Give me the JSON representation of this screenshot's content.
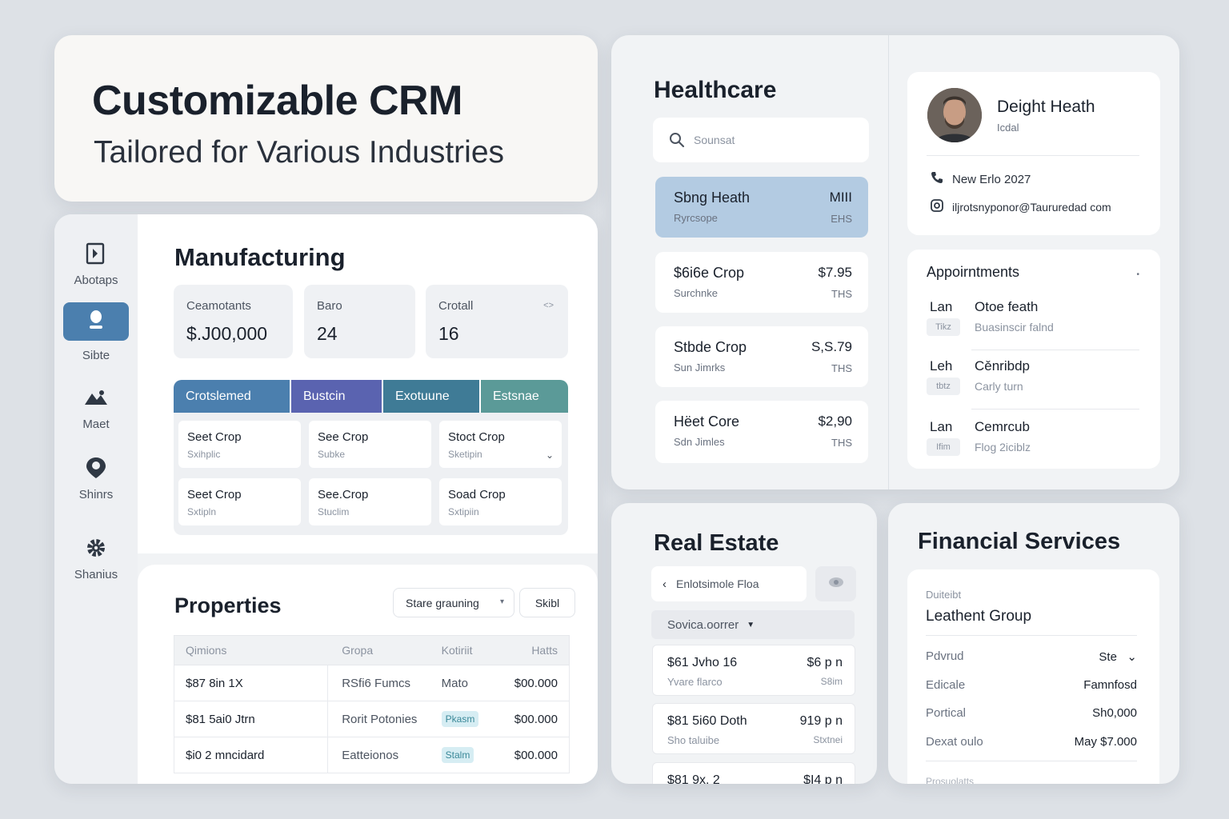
{
  "hero": {
    "title": "Customizable CRM",
    "subtitle": "Tailored for Various Industries"
  },
  "manufacturing": {
    "title": "Manufacturing",
    "nav": [
      {
        "label": "Abotaps",
        "icon": "book-icon"
      },
      {
        "label": "Sibte",
        "icon": "user-icon"
      },
      {
        "label": "Maet",
        "icon": "mountain-image-icon"
      },
      {
        "label": "Shinrs",
        "icon": "location-pin-icon"
      },
      {
        "label": "Shanius",
        "icon": "gear-icon"
      }
    ],
    "stats": [
      {
        "label": "Ceamotants",
        "value": "$.J00,000"
      },
      {
        "label": "Baro",
        "value": "24"
      },
      {
        "label": "Crotall",
        "value": "16",
        "mini": "<>"
      }
    ],
    "grid_headers": [
      "Crotslemed",
      "Bustcin",
      "Exotuune",
      "Estsnae"
    ],
    "grid_colors": [
      "#4b7fae",
      "#5a63b0",
      "#3f7b96",
      "#5b9a98"
    ],
    "grid_cells": [
      {
        "title": "Seet Crop",
        "sub": "Sxihplic"
      },
      {
        "title": "See Crop",
        "sub": "Subke"
      },
      {
        "title": "Stoct Crop",
        "sub": "Sketipin",
        "chevron": "⌄"
      },
      {
        "title": "Seet Crop",
        "sub": "Sxtipln"
      },
      {
        "title": "See.Crop",
        "sub": "Stuclim"
      },
      {
        "title": "Soad Crop",
        "sub": "Sxtipiin"
      }
    ]
  },
  "properties": {
    "title": "Properties",
    "select_label": "Stare grauning",
    "button_label": "Skibl",
    "headers": [
      "Qimions",
      "Gropa",
      "Kotiriit",
      "Hatts"
    ],
    "rows": [
      {
        "c1": "$87 8in 1X",
        "c2": "RSfi6 Fumcs",
        "c3": "Mato",
        "c4": "$00.000",
        "pill": false
      },
      {
        "c1": "$81 5ai0 Jtrn",
        "c2": "Rorit Potonies",
        "c3": "Pkasm",
        "c4": "$00.000",
        "pill": true
      },
      {
        "c1": "$i0 2 mncidard",
        "c2": "Eatteionos",
        "c3": "Stalm",
        "c4": "$00.000",
        "pill": true
      }
    ]
  },
  "healthcare": {
    "title": "Healthcare",
    "search_placeholder": "Sounsat",
    "patients": [
      {
        "name": "Sbng Heath",
        "sub": "Ryrcsope",
        "amount": "MIII",
        "unit": "EHS",
        "selected": true
      },
      {
        "name": "$6i6e Crop",
        "sub": "Surchnke",
        "amount": "$7.95",
        "unit": "THS",
        "selected": false
      },
      {
        "name": "Stbde Crop",
        "sub": "Sun Jimrks",
        "amount": "S,S.79",
        "unit": "THS",
        "selected": false
      },
      {
        "name": "Hëet Core",
        "sub": "Sdn Jimles",
        "amount": "$2,90",
        "unit": "THS",
        "selected": false
      }
    ],
    "profile": {
      "name": "Deight Heath",
      "role": "Icdal",
      "phone": "New Erlo 2027",
      "email": "iljrotsnyponor@Taururedad com"
    },
    "appointments": {
      "title": "Appoirntments",
      "items": [
        {
          "day": "Lan",
          "date": "Tikz",
          "title": "Otoe feath",
          "sub": "Buasinscir falnd"
        },
        {
          "day": "Leh",
          "date": "tbtz",
          "title": "Cěnribdp",
          "sub": "Carly turn"
        },
        {
          "day": "Lan",
          "date": "Ifim",
          "title": "Cemrcub",
          "sub": "Flog 2iciblz"
        }
      ]
    }
  },
  "real_estate": {
    "title": "Real Estate",
    "search_value": "Enlotsimole Floa",
    "select_label": "Sovica.oorrer",
    "listings": [
      {
        "a": "$61 Jvho 16",
        "b": "Yvare flarco",
        "c": "$6 p n",
        "d": "S8im"
      },
      {
        "a": "$81 5i60 Doth",
        "b": "Sho taluibe",
        "c": "919 p n",
        "d": "Stxtnei"
      },
      {
        "a": "$81 9x, 2",
        "b": "",
        "c": "$I4 p n",
        "d": ""
      }
    ]
  },
  "financial": {
    "title": "Financial Services",
    "label0": "Duiteibt",
    "value0": "Leathent Group",
    "rows": [
      {
        "k": "Pdvrud",
        "v": "Ste",
        "chevron": "⌄"
      },
      {
        "k": "Edicale",
        "v": "Famnfosd"
      },
      {
        "k": "Portical",
        "v": "Sh0,000"
      },
      {
        "k": "Dexat oulo",
        "v": "May $7.000"
      }
    ],
    "last": "Prosuolatts"
  }
}
